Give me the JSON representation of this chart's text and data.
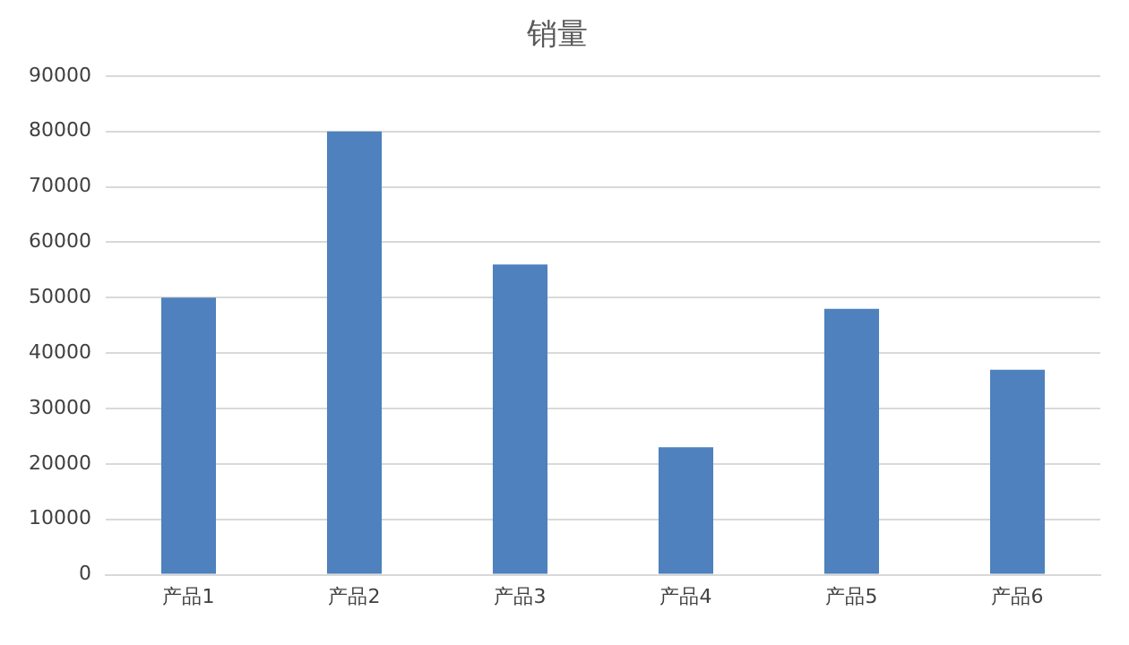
{
  "chart_data": {
    "type": "bar",
    "title": "销量",
    "categories": [
      "产品1",
      "产品2",
      "产品3",
      "产品4",
      "产品5",
      "产品6"
    ],
    "values": [
      50000,
      80000,
      56000,
      23000,
      48000,
      37000
    ],
    "color": "#4e81bd",
    "ylim": [
      0,
      90000
    ],
    "yticks": [
      0,
      10000,
      20000,
      30000,
      40000,
      50000,
      60000,
      70000,
      80000,
      90000
    ],
    "grid": "y",
    "legend": false
  }
}
